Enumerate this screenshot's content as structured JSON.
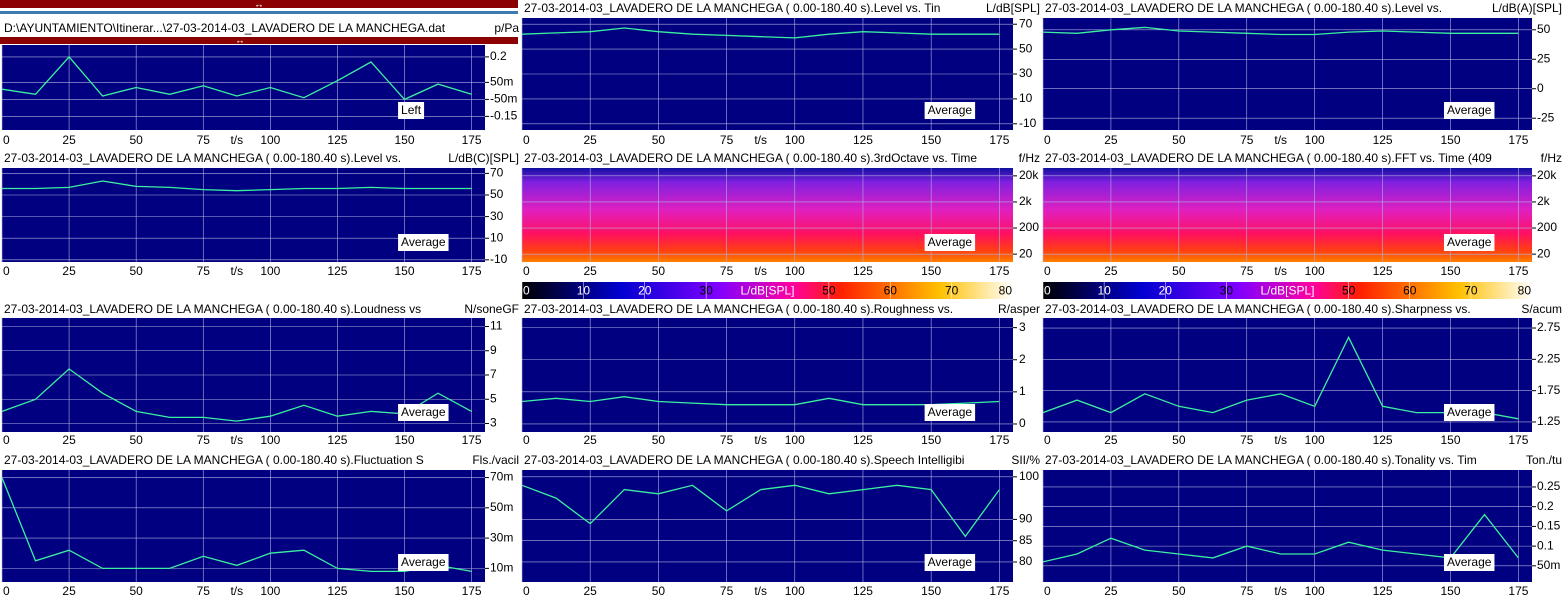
{
  "chart_data": [
    {
      "type": "line",
      "title": "D:\\AYUNTAMIENTO\\Itinerar...\\27-03-2014-03_LAVADERO DE LA MANCHEGA.dat",
      "unit": "p/Pa",
      "legend": "Left",
      "grid": true,
      "color": "#3cf0a0",
      "xlim": [
        0,
        180
      ],
      "xticks": [
        0,
        25,
        50,
        75,
        100,
        125,
        150,
        175
      ],
      "xlabel": "t/s",
      "ylim": [
        -0.23,
        0.27
      ],
      "yticks": [
        0.2,
        {
          "value": 0.05,
          "label": "50m"
        },
        {
          "value": -0.05,
          "label": "-50m"
        },
        -0.15
      ],
      "x": [
        0,
        12.5,
        25,
        37.5,
        50,
        62.5,
        75,
        87.5,
        100,
        112.5,
        125,
        137.5,
        150,
        162.5,
        175
      ],
      "values": [
        0.01,
        -0.02,
        0.2,
        -0.03,
        0.02,
        -0.02,
        0.03,
        -0.03,
        0.02,
        -0.04,
        0.06,
        0.17,
        -0.05,
        0.04,
        -0.02
      ]
    },
    {
      "type": "line",
      "title": "27-03-2014-03_LAVADERO DE LA MANCHEGA ( 0.00-180.40 s).Level vs. Tin",
      "unit": "L/dB[SPL]",
      "legend": "Average",
      "grid": true,
      "color": "#3cf0a0",
      "xlim": [
        0,
        180
      ],
      "xticks": [
        0,
        25,
        50,
        75,
        100,
        125,
        150,
        175
      ],
      "xlabel": "t/s",
      "ylim": [
        -15,
        75
      ],
      "yticks": [
        70,
        50,
        30,
        10,
        -10
      ],
      "x": [
        0,
        12.5,
        25,
        37.5,
        50,
        62.5,
        75,
        87.5,
        100,
        112.5,
        125,
        137.5,
        150,
        162.5,
        175
      ],
      "values": [
        62,
        63,
        64,
        67,
        64,
        62,
        61,
        60,
        59,
        62,
        64,
        63,
        62,
        62,
        62
      ]
    },
    {
      "type": "line",
      "title": "27-03-2014-03_LAVADERO DE LA MANCHEGA ( 0.00-180.40 s).Level vs. ",
      "unit": "L/dB(A)[SPL]",
      "legend": "Average",
      "grid": true,
      "color": "#3cf0a0",
      "xlim": [
        0,
        180
      ],
      "xticks": [
        0,
        25,
        50,
        75,
        100,
        125,
        150,
        175
      ],
      "xlabel": "t/s",
      "ylim": [
        -35,
        60
      ],
      "yticks": [
        50,
        25,
        0,
        -25
      ],
      "x": [
        0,
        12.5,
        25,
        37.5,
        50,
        62.5,
        75,
        87.5,
        100,
        112.5,
        125,
        137.5,
        150,
        162.5,
        175
      ],
      "values": [
        48,
        47,
        50,
        52,
        49,
        48,
        47,
        46,
        46,
        48,
        49,
        48,
        47,
        47,
        47
      ]
    },
    {
      "type": "line",
      "title": "27-03-2014-03_LAVADERO DE LA MANCHEGA ( 0.00-180.40 s).Level vs. ",
      "unit": "L/dB(C)[SPL]",
      "legend": "Average",
      "grid": true,
      "color": "#3cf0a0",
      "xlim": [
        0,
        180
      ],
      "xticks": [
        0,
        25,
        50,
        75,
        100,
        125,
        150,
        175
      ],
      "xlabel": "t/s",
      "ylim": [
        -12,
        75
      ],
      "yticks": [
        70,
        50,
        30,
        10,
        -10
      ],
      "x": [
        0,
        12.5,
        25,
        37.5,
        50,
        62.5,
        75,
        87.5,
        100,
        112.5,
        125,
        137.5,
        150,
        162.5,
        175
      ],
      "values": [
        56,
        56,
        57,
        63,
        58,
        57,
        55,
        54,
        55,
        56,
        56,
        57,
        56,
        56,
        56
      ]
    },
    {
      "type": "heatmap",
      "title": "27-03-2014-03_LAVADERO DE LA MANCHEGA ( 0.00-180.40 s).3rdOctave vs. Time",
      "unit": "f/Hz",
      "legend": "Average",
      "grid": true,
      "xlim": [
        0,
        180
      ],
      "xticks": [
        0,
        25,
        50,
        75,
        100,
        125,
        150,
        175
      ],
      "xlabel": "t/s",
      "yscale": "log",
      "ylim": [
        10,
        40000
      ],
      "yticks": [
        {
          "value": 20000,
          "label": "20k"
        },
        {
          "value": 2000,
          "label": "2k"
        },
        200,
        20
      ],
      "colorbar": {
        "label": "L/dB[SPL]",
        "lim": [
          0,
          80
        ],
        "ticks": [
          0,
          10,
          20,
          30,
          50,
          60,
          70,
          80
        ]
      }
    },
    {
      "type": "heatmap",
      "title": "27-03-2014-03_LAVADERO DE LA MANCHEGA ( 0.00-180.40 s).FFT vs. Time (409",
      "unit": "f/Hz",
      "legend": "Average",
      "grid": true,
      "xlim": [
        0,
        180
      ],
      "xticks": [
        0,
        25,
        50,
        75,
        100,
        125,
        150,
        175
      ],
      "xlabel": "t/s",
      "yscale": "log",
      "ylim": [
        10,
        40000
      ],
      "yticks": [
        {
          "value": 20000,
          "label": "20k"
        },
        {
          "value": 2000,
          "label": "2k"
        },
        200,
        20
      ],
      "colorbar": {
        "label": "L/dB[SPL]",
        "lim": [
          0,
          80
        ],
        "ticks": [
          0,
          10,
          20,
          30,
          50,
          60,
          70,
          80
        ]
      }
    },
    {
      "type": "line",
      "title": "27-03-2014-03_LAVADERO DE LA MANCHEGA ( 0.00-180.40 s).Loudness vs",
      "unit": "N/soneGF",
      "legend": "Average",
      "grid": true,
      "color": "#3cf0a0",
      "xlim": [
        0,
        180
      ],
      "xticks": [
        0,
        25,
        50,
        75,
        100,
        125,
        150,
        175
      ],
      "xlabel": "t/s",
      "ylim": [
        2.3,
        11.7
      ],
      "yticks": [
        11,
        9,
        7,
        5,
        3
      ],
      "x": [
        0,
        12.5,
        25,
        37.5,
        50,
        62.5,
        75,
        87.5,
        100,
        112.5,
        125,
        137.5,
        150,
        162.5,
        175
      ],
      "values": [
        4,
        5,
        7.5,
        5.5,
        4,
        3.5,
        3.5,
        3.2,
        3.6,
        4.5,
        3.6,
        4,
        3.8,
        5.5,
        4
      ]
    },
    {
      "type": "line",
      "title": "27-03-2014-03_LAVADERO DE LA MANCHEGA ( 0.00-180.40 s).Roughness vs.",
      "unit": "R/asper",
      "legend": "Average",
      "grid": true,
      "color": "#3cf0a0",
      "xlim": [
        0,
        180
      ],
      "xticks": [
        0,
        25,
        50,
        75,
        100,
        125,
        150,
        175
      ],
      "xlabel": "t/s",
      "ylim": [
        -0.25,
        3.3
      ],
      "yticks": [
        3,
        2,
        1,
        0
      ],
      "x": [
        0,
        12.5,
        25,
        37.5,
        50,
        62.5,
        75,
        87.5,
        100,
        112.5,
        125,
        137.5,
        150,
        162.5,
        175
      ],
      "values": [
        0.7,
        0.8,
        0.7,
        0.85,
        0.7,
        0.65,
        0.6,
        0.6,
        0.6,
        0.8,
        0.6,
        0.6,
        0.6,
        0.65,
        0.7
      ]
    },
    {
      "type": "line",
      "title": "27-03-2014-03_LAVADERO DE LA MANCHEGA ( 0.00-180.40 s).Sharpness vs.",
      "unit": "S/acum",
      "legend": "Average",
      "grid": true,
      "color": "#3cf0a0",
      "xlim": [
        0,
        180
      ],
      "xticks": [
        0,
        25,
        50,
        75,
        100,
        125,
        150,
        175
      ],
      "xlabel": "t/s",
      "ylim": [
        1.09,
        2.91
      ],
      "yticks": [
        2.75,
        2.25,
        1.75,
        1.25
      ],
      "x": [
        0,
        12.5,
        25,
        37.5,
        50,
        62.5,
        75,
        87.5,
        100,
        112.5,
        125,
        137.5,
        150,
        162.5,
        175
      ],
      "values": [
        1.4,
        1.6,
        1.4,
        1.7,
        1.5,
        1.4,
        1.6,
        1.7,
        1.5,
        2.6,
        1.5,
        1.4,
        1.4,
        1.4,
        1.3
      ]
    },
    {
      "type": "line",
      "title": "27-03-2014-03_LAVADERO DE LA MANCHEGA ( 0.00-180.40 s).Fluctuation S",
      "unit": "Fls./vacil",
      "legend": "Average",
      "grid": true,
      "color": "#3cf0a0",
      "xlim": [
        0,
        180
      ],
      "xticks": [
        0,
        25,
        50,
        75,
        100,
        125,
        150,
        175
      ],
      "xlabel": "t/s",
      "ylim": [
        0.001,
        0.075
      ],
      "yticks": [
        {
          "value": 0.07,
          "label": "70m"
        },
        {
          "value": 0.05,
          "label": "50m"
        },
        {
          "value": 0.03,
          "label": "30m"
        },
        {
          "value": 0.01,
          "label": "10m"
        }
      ],
      "x": [
        0,
        12.5,
        25,
        37.5,
        50,
        62.5,
        75,
        87.5,
        100,
        112.5,
        125,
        137.5,
        150,
        162.5,
        175
      ],
      "values": [
        0.07,
        0.015,
        0.022,
        0.01,
        0.01,
        0.01,
        0.018,
        0.012,
        0.02,
        0.022,
        0.01,
        0.008,
        0.008,
        0.012,
        0.008
      ]
    },
    {
      "type": "line",
      "title": "27-03-2014-03_LAVADERO DE LA MANCHEGA ( 0.00-180.40 s).Speech Intelligibi",
      "unit": "SII/%",
      "legend": "Average",
      "grid": true,
      "color": "#3cf0a0",
      "xlim": [
        0,
        180
      ],
      "xticks": [
        0,
        25,
        50,
        75,
        100,
        125,
        150,
        175
      ],
      "xlabel": "t/s",
      "ylim": [
        75.3,
        101.6
      ],
      "yticks": [
        100,
        90,
        85,
        80
      ],
      "x": [
        0,
        12.5,
        25,
        37.5,
        50,
        62.5,
        75,
        87.5,
        100,
        112.5,
        125,
        137.5,
        150,
        162.5,
        175
      ],
      "values": [
        98,
        95,
        89,
        97,
        96,
        98,
        92,
        97,
        98,
        96,
        97,
        98,
        97,
        86,
        97
      ]
    },
    {
      "type": "line",
      "title": "27-03-2014-03_LAVADERO DE LA MANCHEGA ( 0.00-180.40 s).Tonality vs. Tim",
      "unit": "Ton./tu",
      "legend": "Average",
      "grid": true,
      "color": "#3cf0a0",
      "xlim": [
        0,
        180
      ],
      "xticks": [
        0,
        25,
        50,
        75,
        100,
        125,
        150,
        175
      ],
      "xlabel": "t/s",
      "ylim": [
        0.009,
        0.293
      ],
      "yticks": [
        0.25,
        0.2,
        0.15,
        0.1,
        {
          "value": 0.05,
          "label": "50m"
        }
      ],
      "x": [
        0,
        12.5,
        25,
        37.5,
        50,
        62.5,
        75,
        87.5,
        100,
        112.5,
        125,
        137.5,
        150,
        162.5,
        175
      ],
      "values": [
        0.06,
        0.08,
        0.12,
        0.09,
        0.08,
        0.07,
        0.1,
        0.08,
        0.08,
        0.11,
        0.09,
        0.08,
        0.07,
        0.18,
        0.07
      ]
    }
  ]
}
